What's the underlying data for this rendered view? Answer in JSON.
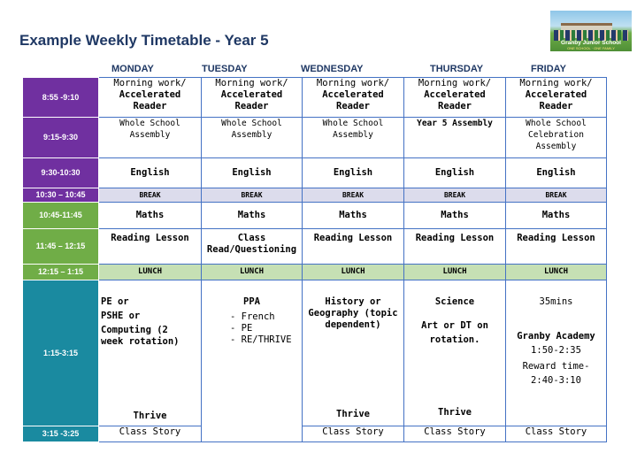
{
  "title": "Example Weekly Timetable - Year 5",
  "logo": {
    "name": "Granby Junior School",
    "motto": "ONE SCHOOL · ONE FAMILY"
  },
  "days": [
    "MONDAY",
    "TUESDAY",
    "WEDNESDAY",
    "THURSDAY",
    "FRIDAY"
  ],
  "times": [
    "8:55 -9:10",
    "9:15-9:30",
    "9:30-10:30",
    "10:30 – 10:45",
    "10:45-11:45",
    "11:45 – 12:15",
    "12:15 – 1:15",
    "1:15-3:15",
    "3:15 -3:25"
  ],
  "morning": {
    "line1": "Morning work/",
    "line2": "Accelerated",
    "line3": "Reader"
  },
  "assembly": {
    "mon": [
      "Whole School",
      "Assembly"
    ],
    "tue": [
      "Whole School",
      "Assembly"
    ],
    "wed": [
      "Whole School",
      "Assembly"
    ],
    "thu": "Year 5 Assembly",
    "fri": [
      "Whole School",
      "Celebration",
      "Assembly"
    ]
  },
  "english": "English",
  "break": "BREAK",
  "maths": "Maths",
  "reading": {
    "mon": "Reading Lesson",
    "tue": [
      "Class",
      "Read/Questioning"
    ],
    "wed": "Reading Lesson",
    "thu": "Reading Lesson",
    "fri": "Reading Lesson"
  },
  "lunch": "LUNCH",
  "afternoon": {
    "mon": {
      "lines": [
        "PE or",
        "PSHE or",
        "Computing (2",
        "week rotation)"
      ],
      "thrive": "Thrive"
    },
    "tue": {
      "heading": "PPA",
      "items": [
        "French",
        "PE",
        "RE/THRIVE"
      ]
    },
    "wed": {
      "lines": [
        "History or",
        "Geography (topic",
        "dependent)"
      ],
      "thrive": "Thrive"
    },
    "thu": {
      "heading": "Science",
      "lines": [
        "Art or DT on",
        "rotation."
      ],
      "thrive": "Thrive"
    },
    "fri": {
      "top": "35mins",
      "academy": "Granby Academy",
      "lines": [
        "1:50-2:35",
        "Reward time-",
        "2:40-3:10"
      ]
    }
  },
  "class_story": "Class Story"
}
